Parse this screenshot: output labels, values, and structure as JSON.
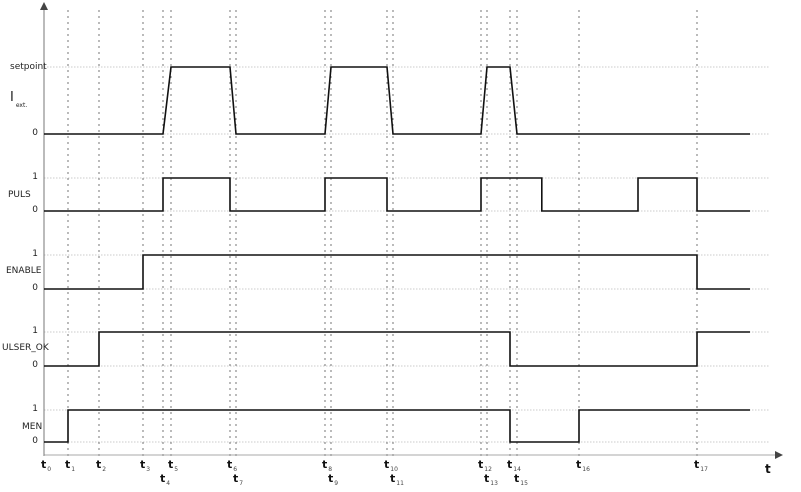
{
  "time_axis": {
    "label": "t",
    "ticks": [
      "0",
      "1",
      "2",
      "3",
      "4",
      "5",
      "6",
      "7",
      "8",
      "9",
      "10",
      "11",
      "12",
      "13",
      "14",
      "15",
      "16",
      "17"
    ],
    "tick_prefix": "t"
  },
  "signals": [
    {
      "name": "I",
      "subscript": "ext.",
      "levels": [
        "setpoint",
        "0"
      ],
      "shape": "ramp",
      "high_intervals": [
        [
          4,
          5,
          6,
          7
        ],
        [
          8,
          9,
          10,
          11
        ],
        [
          12,
          13,
          14,
          15
        ]
      ]
    },
    {
      "name": "PULS",
      "levels": [
        "1",
        "0"
      ],
      "shape": "step",
      "high_intervals": [
        [
          4,
          6
        ],
        [
          8,
          10
        ],
        [
          12,
          15.4
        ],
        [
          16.5,
          17
        ]
      ]
    },
    {
      "name": "ENABLE",
      "levels": [
        "1",
        "0"
      ],
      "shape": "step",
      "high_intervals": [
        [
          3,
          17
        ]
      ]
    },
    {
      "name": "ULSER_OK",
      "levels": [
        "1",
        "0"
      ],
      "shape": "step",
      "high_intervals": [
        [
          2,
          14
        ],
        [
          17,
          18
        ]
      ]
    },
    {
      "name": "MEN",
      "levels": [
        "1",
        "0"
      ],
      "shape": "step",
      "high_intervals": [
        [
          1,
          14
        ],
        [
          16,
          18
        ]
      ]
    }
  ],
  "colors": {
    "signal": "#111111",
    "grid": "#555555",
    "reference": "#bbbbbb"
  }
}
